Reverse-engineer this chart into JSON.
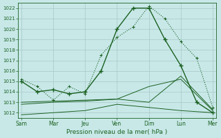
{
  "background_color": "#c8e8e8",
  "grid_color": "#a8c8c8",
  "line_color": "#1a6020",
  "xlabel": "Pression niveau de la mer( hPa )",
  "ylim": [
    1011.5,
    1022.5
  ],
  "yticks": [
    1012,
    1013,
    1014,
    1015,
    1016,
    1017,
    1018,
    1019,
    1020,
    1021,
    1022
  ],
  "x_labels": [
    "Sam",
    "Mar",
    "Jeu",
    "Ven",
    "Dim",
    "Lun",
    "Mer"
  ],
  "x_positions": [
    0,
    1,
    2,
    3,
    4,
    5,
    6
  ],
  "xlim": [
    -0.1,
    6.1
  ],
  "lines": [
    {
      "x": [
        0,
        0.5,
        1.0,
        1.5,
        2.0,
        2.5,
        3.0,
        3.5,
        4.0,
        4.5,
        5.0,
        5.5,
        6.0
      ],
      "y": [
        1015.0,
        1014.0,
        1014.2,
        1013.8,
        1014.0,
        1016.0,
        1020.0,
        1022.0,
        1022.0,
        1019.0,
        1016.5,
        1013.0,
        1012.0
      ],
      "style": "-",
      "marker": "+",
      "lw": 1.0,
      "ms": 4.0,
      "mew": 1.0,
      "zorder": 5
    },
    {
      "x": [
        0,
        0.5,
        1.0,
        1.5,
        2.0,
        2.5,
        3.0,
        3.5,
        4.0,
        4.5,
        5.0,
        5.5,
        6.0
      ],
      "y": [
        1015.2,
        1014.5,
        1013.2,
        1014.5,
        1013.8,
        1017.5,
        1019.2,
        1020.2,
        1022.2,
        1021.0,
        1018.8,
        1017.2,
        1012.5
      ],
      "style": ":",
      "marker": "+",
      "lw": 0.8,
      "ms": 3.0,
      "mew": 0.8,
      "zorder": 4
    },
    {
      "x": [
        0,
        1,
        2,
        3,
        4,
        5,
        6
      ],
      "y": [
        1011.8,
        1012.0,
        1012.2,
        1012.8,
        1012.5,
        1012.2,
        1012.0
      ],
      "style": "-",
      "marker": null,
      "lw": 0.7,
      "ms": 0,
      "mew": 0,
      "zorder": 3
    },
    {
      "x": [
        0,
        1,
        2,
        3,
        4,
        5,
        6
      ],
      "y": [
        1012.8,
        1013.0,
        1013.1,
        1013.3,
        1014.5,
        1015.2,
        1012.2
      ],
      "style": "-",
      "marker": null,
      "lw": 0.7,
      "ms": 0,
      "mew": 0,
      "zorder": 3
    },
    {
      "x": [
        0,
        1,
        2,
        3,
        4,
        5,
        6
      ],
      "y": [
        1013.0,
        1013.1,
        1013.2,
        1013.3,
        1013.0,
        1015.5,
        1012.3
      ],
      "style": "-",
      "marker": null,
      "lw": 0.7,
      "ms": 0,
      "mew": 0,
      "zorder": 3
    }
  ],
  "ytick_fontsize": 5.0,
  "xtick_fontsize": 5.5,
  "xlabel_fontsize": 6.5
}
